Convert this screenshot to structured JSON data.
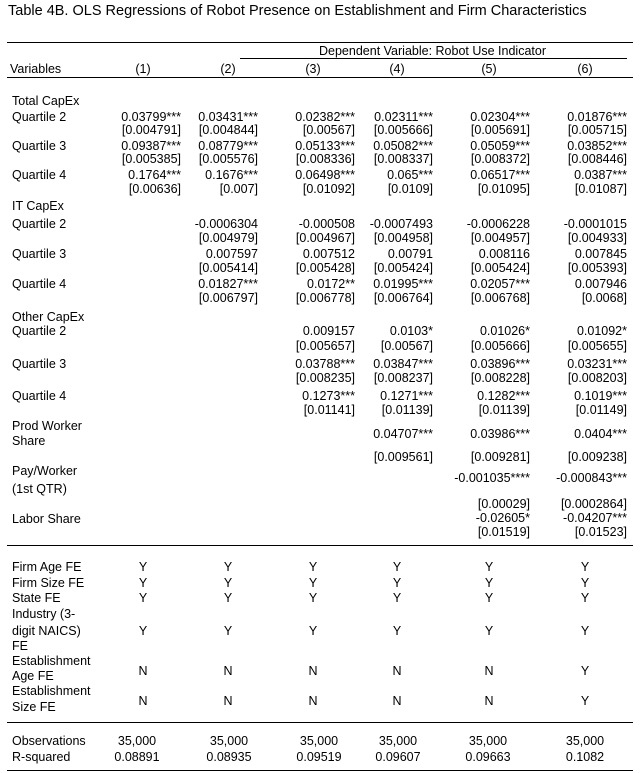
{
  "title": "Table 4B. OLS Regressions of Robot Presence on Establishment and Firm Characteristics",
  "dependent_variable": "Dependent Variable: Robot Use Indicator",
  "variables_label": "Variables",
  "columns": [
    "(1)",
    "(2)",
    "(3)",
    "(4)",
    "(5)",
    "(6)"
  ],
  "rows": [
    {
      "label": [
        "Total CapEx"
      ]
    },
    {
      "label": [
        "Quartile 2"
      ],
      "coef": [
        "0.03799***",
        "0.03431***",
        "0.02382***",
        "0.02311***",
        "0.02304***",
        "0.01876***"
      ],
      "se": [
        "[0.004791]",
        "[0.004844]",
        "[0.00567]",
        "[0.005666]",
        "[0.005691]",
        "[0.005715]"
      ]
    },
    {
      "label": [
        "Quartile 3"
      ],
      "coef": [
        "0.09387***",
        "0.08779***",
        "0.05133***",
        "0.05082***",
        "0.05059***",
        "0.03852***"
      ],
      "se": [
        "[0.005385]",
        "[0.005576]",
        "[0.008336]",
        "[0.008337]",
        "[0.008372]",
        "[0.008446]"
      ]
    },
    {
      "label": [
        "Quartile 4"
      ],
      "coef": [
        "0.1764***",
        "0.1676***",
        "0.06498***",
        "0.065***",
        "0.06517***",
        "0.0387***"
      ],
      "se": [
        "[0.00636]",
        "[0.007]",
        "[0.01092]",
        "[0.0109]",
        "[0.01095]",
        "[0.01087]"
      ]
    },
    {
      "label": [
        "IT CapEx"
      ]
    },
    {
      "label": [
        "Quartile 2"
      ],
      "coef": [
        null,
        "-0.0006304",
        "-0.000508",
        "-0.0007493",
        "-0.0006228",
        "-0.0001015"
      ],
      "se": [
        null,
        "[0.004979]",
        "[0.004967]",
        "[0.004958]",
        "[0.004957]",
        "[0.004933]"
      ]
    },
    {
      "label": [
        "Quartile 3"
      ],
      "coef": [
        null,
        "0.007597",
        "0.007512",
        "0.00791",
        "0.008116",
        "0.007845"
      ],
      "se": [
        null,
        "[0.005414]",
        "[0.005428]",
        "[0.005424]",
        "[0.005424]",
        "[0.005393]"
      ]
    },
    {
      "label": [
        "Quartile 4"
      ],
      "coef": [
        null,
        "0.01827***",
        "0.0172**",
        "0.01995***",
        "0.02057***",
        "0.007946"
      ],
      "se": [
        null,
        "[0.006797]",
        "[0.006778]",
        "[0.006764]",
        "[0.006768]",
        "[0.0068]"
      ]
    },
    {
      "label": [
        "Other CapEx"
      ]
    },
    {
      "label": [
        "Quartile 2"
      ],
      "coef": [
        null,
        null,
        "0.009157",
        "0.0103*",
        "0.01026*",
        "0.01092*"
      ],
      "se": [
        null,
        null,
        "[0.005657]",
        "[0.00567]",
        "[0.005666]",
        "[0.005655]"
      ]
    },
    {
      "label": [
        "Quartile 3"
      ],
      "coef": [
        null,
        null,
        "0.03788***",
        "0.03847***",
        "0.03896***",
        "0.03231***"
      ],
      "se": [
        null,
        null,
        "[0.008235]",
        "[0.008237]",
        "[0.008228]",
        "[0.008203]"
      ]
    },
    {
      "label": [
        "Quartile 4"
      ],
      "coef": [
        null,
        null,
        "0.1273***",
        "0.1271***",
        "0.1282***",
        "0.1019***"
      ],
      "se": [
        null,
        null,
        "[0.01141]",
        "[0.01139]",
        "[0.01139]",
        "[0.01149]"
      ]
    },
    {
      "label": [
        "Prod Worker",
        "Share"
      ],
      "coef": [
        null,
        null,
        null,
        "0.04707***",
        "0.03986***",
        "0.0404***"
      ],
      "se": [
        null,
        null,
        null,
        "[0.009561]",
        "[0.009281]",
        "[0.009238]"
      ]
    },
    {
      "label": [
        "Pay/Worker",
        "(1st QTR)"
      ],
      "coef": [
        null,
        null,
        null,
        null,
        "-0.001035****",
        "-0.000843***"
      ],
      "se": [
        null,
        null,
        null,
        null,
        "[0.00029]",
        "[0.0002864]"
      ]
    },
    {
      "label": [
        "Labor Share"
      ],
      "coef": [
        null,
        null,
        null,
        null,
        "-0.02605*",
        "-0.04207***"
      ],
      "se": [
        null,
        null,
        null,
        null,
        "[0.01519]",
        "[0.01523]"
      ]
    }
  ],
  "fixed_effects": [
    {
      "label": [
        "Firm Age FE"
      ],
      "values": [
        "Y",
        "Y",
        "Y",
        "Y",
        "Y",
        "Y"
      ]
    },
    {
      "label": [
        "Firm Size FE"
      ],
      "values": [
        "Y",
        "Y",
        "Y",
        "Y",
        "Y",
        "Y"
      ]
    },
    {
      "label": [
        "State FE"
      ],
      "values": [
        "Y",
        "Y",
        "Y",
        "Y",
        "Y",
        "Y"
      ]
    },
    {
      "label": [
        "Industry (3-",
        "digit NAICS)",
        "FE"
      ],
      "values": [
        "Y",
        "Y",
        "Y",
        "Y",
        "Y",
        "Y"
      ]
    },
    {
      "label": [
        "Establishment",
        "Age FE"
      ],
      "values": [
        "N",
        "N",
        "N",
        "N",
        "N",
        "Y"
      ]
    },
    {
      "label": [
        "Establishment",
        "Size FE"
      ],
      "values": [
        "N",
        "N",
        "N",
        "N",
        "N",
        "Y"
      ]
    }
  ],
  "stats": [
    {
      "label": [
        "Observations"
      ],
      "values": [
        "35,000",
        "35,000",
        "35,000",
        "35,000",
        "35,000",
        "35,000"
      ]
    },
    {
      "label": [
        "R-squared"
      ],
      "values": [
        "0.08891",
        "0.08935",
        "0.09519",
        "0.09607",
        "0.09663",
        "0.1082"
      ]
    }
  ]
}
